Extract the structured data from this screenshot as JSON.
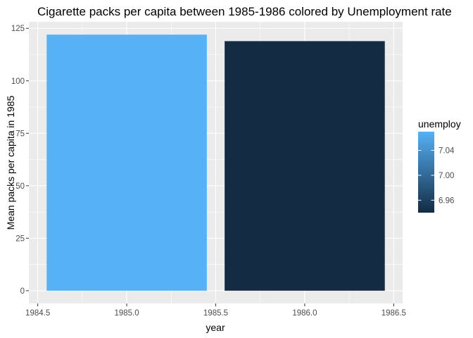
{
  "chart_data": {
    "type": "bar",
    "title": "Cigarette packs per capita between 1985-1986 colored by Unemployment rate",
    "xlabel": "year",
    "ylabel": "Mean packs per capita in 1985",
    "x": [
      1985,
      1986
    ],
    "values": [
      122.0,
      118.9
    ],
    "unemploy": [
      7.07,
      6.94
    ],
    "xlim": [
      1984.45,
      1986.55
    ],
    "ylim": [
      -6.1,
      128.1
    ],
    "x_ticks": [
      "1984.5",
      "1985.0",
      "1985.5",
      "1986.0",
      "1986.5"
    ],
    "y_ticks": [
      "0",
      "25",
      "50",
      "75",
      "100",
      "125"
    ],
    "grid": true,
    "panel_background": "#ebebeb",
    "legend": {
      "title": "unemploy",
      "placement": "right",
      "type": "colorbar",
      "range": [
        6.94,
        7.07
      ],
      "ticks": [
        "6.96",
        "7.00",
        "7.04"
      ],
      "low_color": "#132b43",
      "high_color": "#56b1f7"
    }
  }
}
